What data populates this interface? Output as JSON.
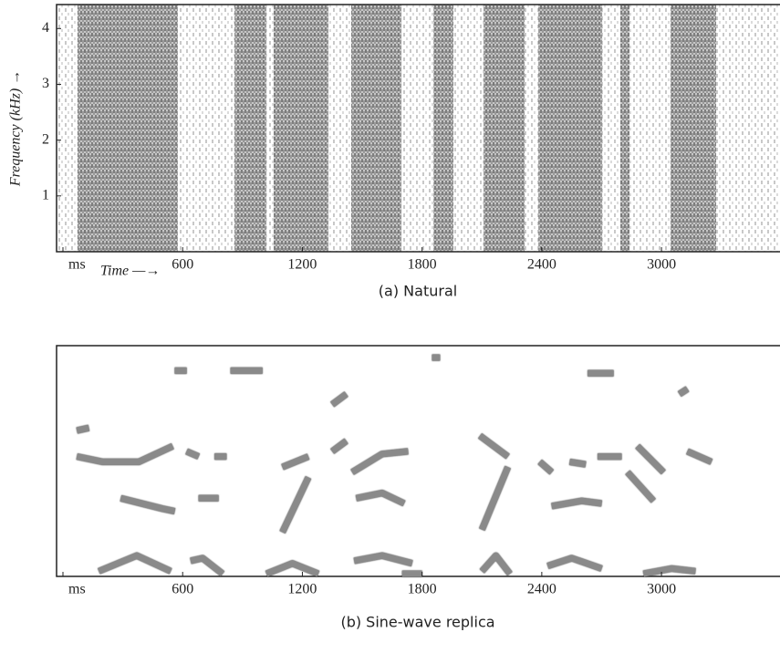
{
  "chart_data": [
    {
      "type": "spectrogram",
      "caption": "(a) Natural",
      "ylabel": "Frequency (kHz) →",
      "xlabel": "Time —→",
      "xlim": [
        0,
        3594
      ],
      "ylim": [
        0,
        4.43
      ],
      "xticks": [
        {
          "value": 0,
          "label": "ms"
        },
        600,
        1200,
        1800,
        2400,
        3000
      ],
      "yticks": [
        1,
        2,
        3,
        4
      ],
      "color": "#333333",
      "bands": [
        [
          73,
          576
        ],
        [
          860,
          1020
        ],
        [
          1056,
          1331
        ],
        [
          1445,
          1697
        ],
        [
          1857,
          1957
        ],
        [
          2108,
          2314
        ],
        [
          2383,
          2703
        ],
        [
          2794,
          2840
        ],
        [
          3045,
          3274
        ]
      ]
    },
    {
      "type": "tracks",
      "caption": "(b) Sine-wave replica",
      "xlim": [
        0,
        3594
      ],
      "ylim": [
        0,
        4.43
      ],
      "xticks": [
        {
          "value": 0,
          "label": "ms"
        },
        600,
        1200,
        1800,
        2400,
        3000
      ],
      "color": "#8a8a8a",
      "series": [
        {
          "x": [
            180,
            370,
            540
          ],
          "values": [
            0.1,
            0.4,
            0.1
          ]
        },
        {
          "x": [
            640,
            700,
            800
          ],
          "values": [
            0.3,
            0.35,
            0.05
          ]
        },
        {
          "x": [
            1020,
            1150,
            1280
          ],
          "values": [
            0.05,
            0.25,
            0.05
          ]
        },
        {
          "x": [
            1460,
            1600,
            1750
          ],
          "values": [
            0.3,
            0.4,
            0.25
          ]
        },
        {
          "x": [
            1700,
            1800
          ],
          "values": [
            0.05,
            0.05
          ]
        },
        {
          "x": [
            2100,
            2170,
            2240
          ],
          "values": [
            0.1,
            0.4,
            0.05
          ]
        },
        {
          "x": [
            2430,
            2550,
            2700
          ],
          "values": [
            0.2,
            0.35,
            0.15
          ]
        },
        {
          "x": [
            2910,
            3050,
            3170
          ],
          "values": [
            0.05,
            0.15,
            0.1
          ]
        },
        {
          "x": [
            290,
            500,
            560
          ],
          "values": [
            1.5,
            1.3,
            1.25
          ]
        },
        {
          "x": [
            680,
            780
          ],
          "values": [
            1.5,
            1.5
          ]
        },
        {
          "x": [
            1100,
            1230
          ],
          "values": [
            0.85,
            1.9
          ]
        },
        {
          "x": [
            1470,
            1600,
            1710
          ],
          "values": [
            1.5,
            1.6,
            1.4
          ]
        },
        {
          "x": [
            2100,
            2230
          ],
          "values": [
            0.9,
            2.1
          ]
        },
        {
          "x": [
            2450,
            2600,
            2700
          ],
          "values": [
            1.35,
            1.45,
            1.4
          ]
        },
        {
          "x": [
            2830,
            2960
          ],
          "values": [
            2.0,
            1.45
          ]
        },
        {
          "x": [
            70,
            200,
            380,
            550
          ],
          "values": [
            2.3,
            2.2,
            2.2,
            2.5
          ]
        },
        {
          "x": [
            620,
            680
          ],
          "values": [
            2.4,
            2.3
          ]
        },
        {
          "x": [
            760,
            820
          ],
          "values": [
            2.3,
            2.3
          ]
        },
        {
          "x": [
            1100,
            1230
          ],
          "values": [
            2.1,
            2.3
          ]
        },
        {
          "x": [
            1350,
            1420
          ],
          "values": [
            2.4,
            2.6
          ]
        },
        {
          "x": [
            1450,
            1600,
            1730
          ],
          "values": [
            2.0,
            2.35,
            2.4
          ]
        },
        {
          "x": [
            2090,
            2230
          ],
          "values": [
            2.7,
            2.3
          ]
        },
        {
          "x": [
            2390,
            2450
          ],
          "values": [
            2.2,
            2.0
          ]
        },
        {
          "x": [
            2540,
            2620
          ],
          "values": [
            2.2,
            2.15
          ]
        },
        {
          "x": [
            2680,
            2800
          ],
          "values": [
            2.3,
            2.3
          ]
        },
        {
          "x": [
            2880,
            3010
          ],
          "values": [
            2.5,
            2.0
          ]
        },
        {
          "x": [
            3130,
            3250
          ],
          "values": [
            2.4,
            2.2
          ]
        },
        {
          "x": [
            70,
            130
          ],
          "values": [
            2.8,
            2.85
          ]
        },
        {
          "x": [
            1350,
            1420
          ],
          "values": [
            3.3,
            3.5
          ]
        },
        {
          "x": [
            3090,
            3130
          ],
          "values": [
            3.5,
            3.6
          ]
        },
        {
          "x": [
            560,
            620
          ],
          "values": [
            3.95,
            3.95
          ]
        },
        {
          "x": [
            840,
            1000
          ],
          "values": [
            3.95,
            3.95
          ]
        },
        {
          "x": [
            1850,
            1890
          ],
          "values": [
            4.2,
            4.2
          ]
        },
        {
          "x": [
            2630,
            2760
          ],
          "values": [
            3.9,
            3.9
          ]
        }
      ]
    }
  ]
}
